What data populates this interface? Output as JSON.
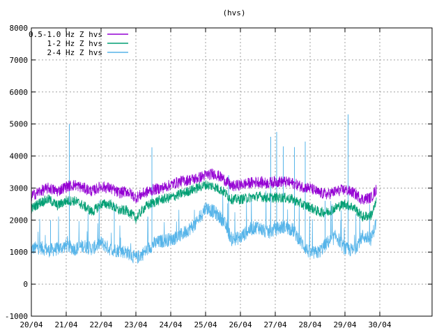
{
  "chart_data": {
    "type": "line",
    "title": "(hvs)",
    "xlabel": "",
    "ylabel": "",
    "xlim": [
      0,
      11.5
    ],
    "ylim": [
      -1000,
      8000
    ],
    "yticks": [
      -1000,
      0,
      1000,
      2000,
      3000,
      4000,
      5000,
      6000,
      7000,
      8000
    ],
    "xticks": [
      {
        "pos": 0,
        "label": "20/04"
      },
      {
        "pos": 1,
        "label": "21/04"
      },
      {
        "pos": 2,
        "label": "22/04"
      },
      {
        "pos": 3,
        "label": "23/04"
      },
      {
        "pos": 4,
        "label": "24/04"
      },
      {
        "pos": 5,
        "label": "25/04"
      },
      {
        "pos": 6,
        "label": "26/04"
      },
      {
        "pos": 7,
        "label": "27/04"
      },
      {
        "pos": 8,
        "label": "28/04"
      },
      {
        "pos": 9,
        "label": "29/04"
      },
      {
        "pos": 10,
        "label": "30/04"
      }
    ],
    "grid": true,
    "legend_position": "top-left",
    "series": [
      {
        "name": "0.5-1.0 Hz Z hvs",
        "color": "#9400d3",
        "noise": 180,
        "x": [
          0,
          0.25,
          0.5,
          0.75,
          1,
          1.25,
          1.5,
          1.75,
          2,
          2.25,
          2.5,
          2.75,
          3,
          3.25,
          3.5,
          3.75,
          4,
          4.25,
          4.5,
          4.75,
          5,
          5.25,
          5.5,
          5.75,
          6,
          6.25,
          6.5,
          6.75,
          7,
          7.25,
          7.5,
          7.75,
          8,
          8.25,
          8.5,
          8.75,
          9,
          9.25,
          9.5,
          9.75,
          9.9
        ],
        "y": [
          2750,
          2900,
          3000,
          2900,
          3050,
          3100,
          3000,
          2900,
          3050,
          3000,
          2850,
          2900,
          2700,
          2850,
          2950,
          3000,
          3100,
          3200,
          3250,
          3300,
          3400,
          3450,
          3300,
          3050,
          3100,
          3150,
          3200,
          3150,
          3200,
          3200,
          3150,
          3050,
          3000,
          2850,
          2800,
          2900,
          2950,
          2850,
          2650,
          2700,
          2950
        ]
      },
      {
        "name": "1-2 Hz Z hvs",
        "color": "#009e73",
        "noise": 160,
        "x": [
          0,
          0.25,
          0.5,
          0.75,
          1,
          1.25,
          1.5,
          1.75,
          2,
          2.25,
          2.5,
          2.75,
          3,
          3.25,
          3.5,
          3.75,
          4,
          4.25,
          4.5,
          4.75,
          5,
          5.25,
          5.5,
          5.75,
          6,
          6.25,
          6.5,
          6.75,
          7,
          7.25,
          7.5,
          7.75,
          8,
          8.25,
          8.5,
          8.75,
          9,
          9.25,
          9.5,
          9.75,
          9.9
        ],
        "y": [
          2350,
          2550,
          2650,
          2450,
          2600,
          2600,
          2450,
          2250,
          2500,
          2500,
          2300,
          2300,
          2050,
          2400,
          2550,
          2650,
          2700,
          2800,
          2900,
          3000,
          3100,
          3050,
          2900,
          2650,
          2650,
          2700,
          2750,
          2700,
          2700,
          2700,
          2650,
          2500,
          2400,
          2250,
          2250,
          2400,
          2500,
          2400,
          2100,
          2150,
          2550
        ]
      },
      {
        "name": "2-4 Hz Z hvs",
        "color": "#56b4e9",
        "noise": 220,
        "x": [
          0,
          0.25,
          0.5,
          0.75,
          1,
          1.25,
          1.5,
          1.75,
          2,
          2.25,
          2.5,
          2.75,
          3,
          3.25,
          3.5,
          3.75,
          4,
          4.25,
          4.5,
          4.75,
          5,
          5.25,
          5.5,
          5.75,
          6,
          6.25,
          6.5,
          6.75,
          7,
          7.25,
          7.5,
          7.75,
          8,
          8.25,
          8.5,
          8.75,
          9,
          9.25,
          9.5,
          9.75,
          9.9
        ],
        "y": [
          1100,
          1150,
          1050,
          1100,
          1200,
          1100,
          1200,
          1100,
          1300,
          1100,
          1050,
          1000,
          800,
          1000,
          1250,
          1350,
          1400,
          1500,
          1700,
          1900,
          2400,
          2250,
          2000,
          1400,
          1450,
          1700,
          1800,
          1600,
          1700,
          1800,
          1700,
          1300,
          950,
          1000,
          1300,
          1500,
          1100,
          1050,
          1500,
          1400,
          1950
        ]
      }
    ],
    "spikes": [
      {
        "series": 2,
        "x": 1.09,
        "y": 5000
      },
      {
        "series": 2,
        "x": 3.46,
        "y": 4270
      },
      {
        "series": 2,
        "x": 6.87,
        "y": 4600
      },
      {
        "series": 2,
        "x": 7.04,
        "y": 4750
      },
      {
        "series": 2,
        "x": 7.23,
        "y": 4300
      },
      {
        "series": 2,
        "x": 7.55,
        "y": 4280
      },
      {
        "series": 2,
        "x": 7.86,
        "y": 4450
      },
      {
        "series": 2,
        "x": 9.09,
        "y": 5300
      },
      {
        "series": 2,
        "x": 5.66,
        "y": 3400
      },
      {
        "series": 2,
        "x": 0.55,
        "y": 2000
      },
      {
        "series": 2,
        "x": 2.38,
        "y": 2500
      },
      {
        "series": 2,
        "x": 8.43,
        "y": 2600
      }
    ]
  }
}
